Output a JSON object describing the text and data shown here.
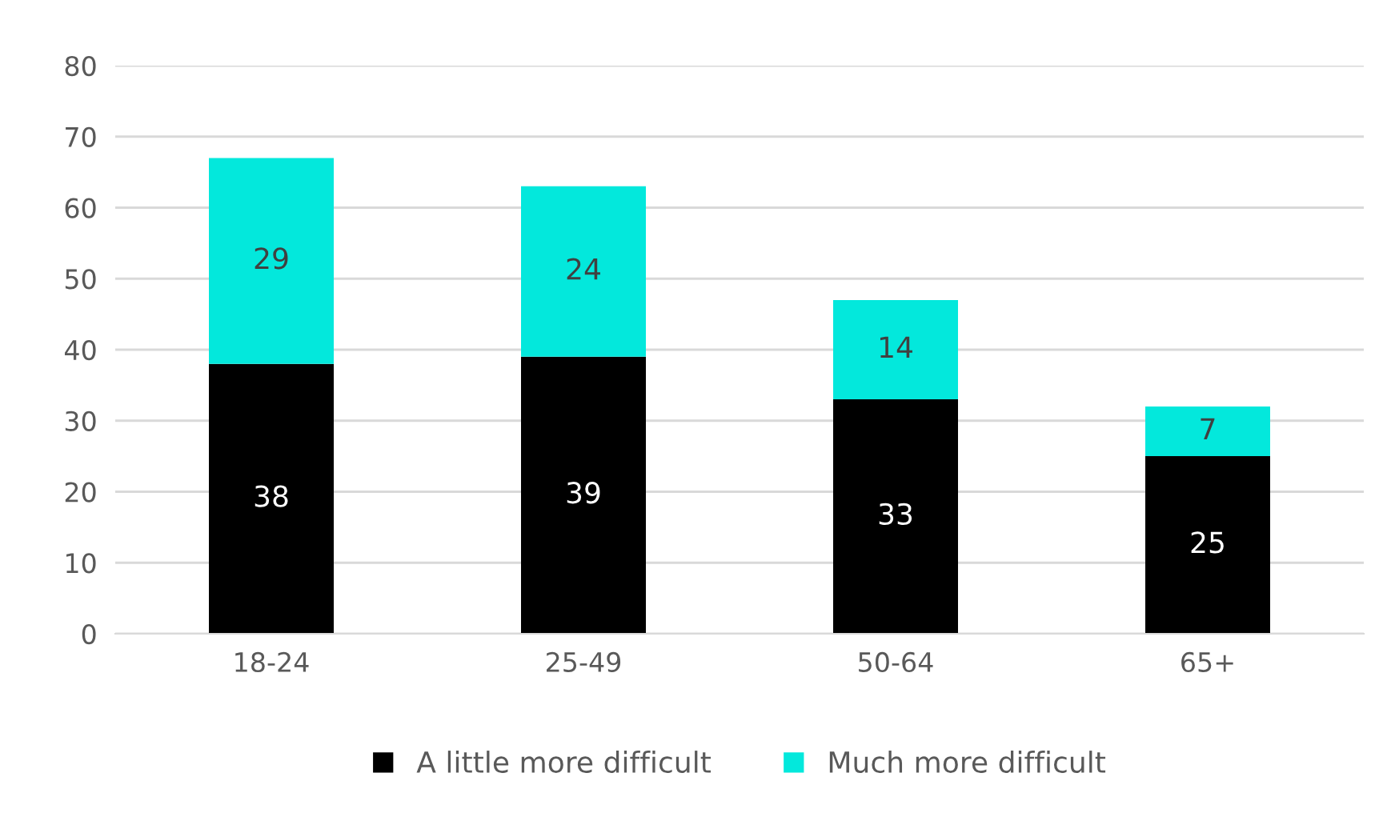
{
  "chart_data": {
    "type": "bar",
    "stacked": true,
    "categories": [
      "18-24",
      "25-49",
      "50-64",
      "65+"
    ],
    "series": [
      {
        "name": "A little more difficult",
        "color": "#000000",
        "values": [
          38,
          39,
          33,
          25
        ]
      },
      {
        "name": "Much more difficult",
        "color": "#03e8dc",
        "values": [
          29,
          24,
          14,
          7
        ]
      }
    ],
    "ylim": [
      0,
      80
    ],
    "yticks": [
      0,
      10,
      20,
      30,
      40,
      50,
      60,
      70,
      80
    ],
    "grid": "y",
    "legend": "bottom",
    "data_labels": true
  }
}
